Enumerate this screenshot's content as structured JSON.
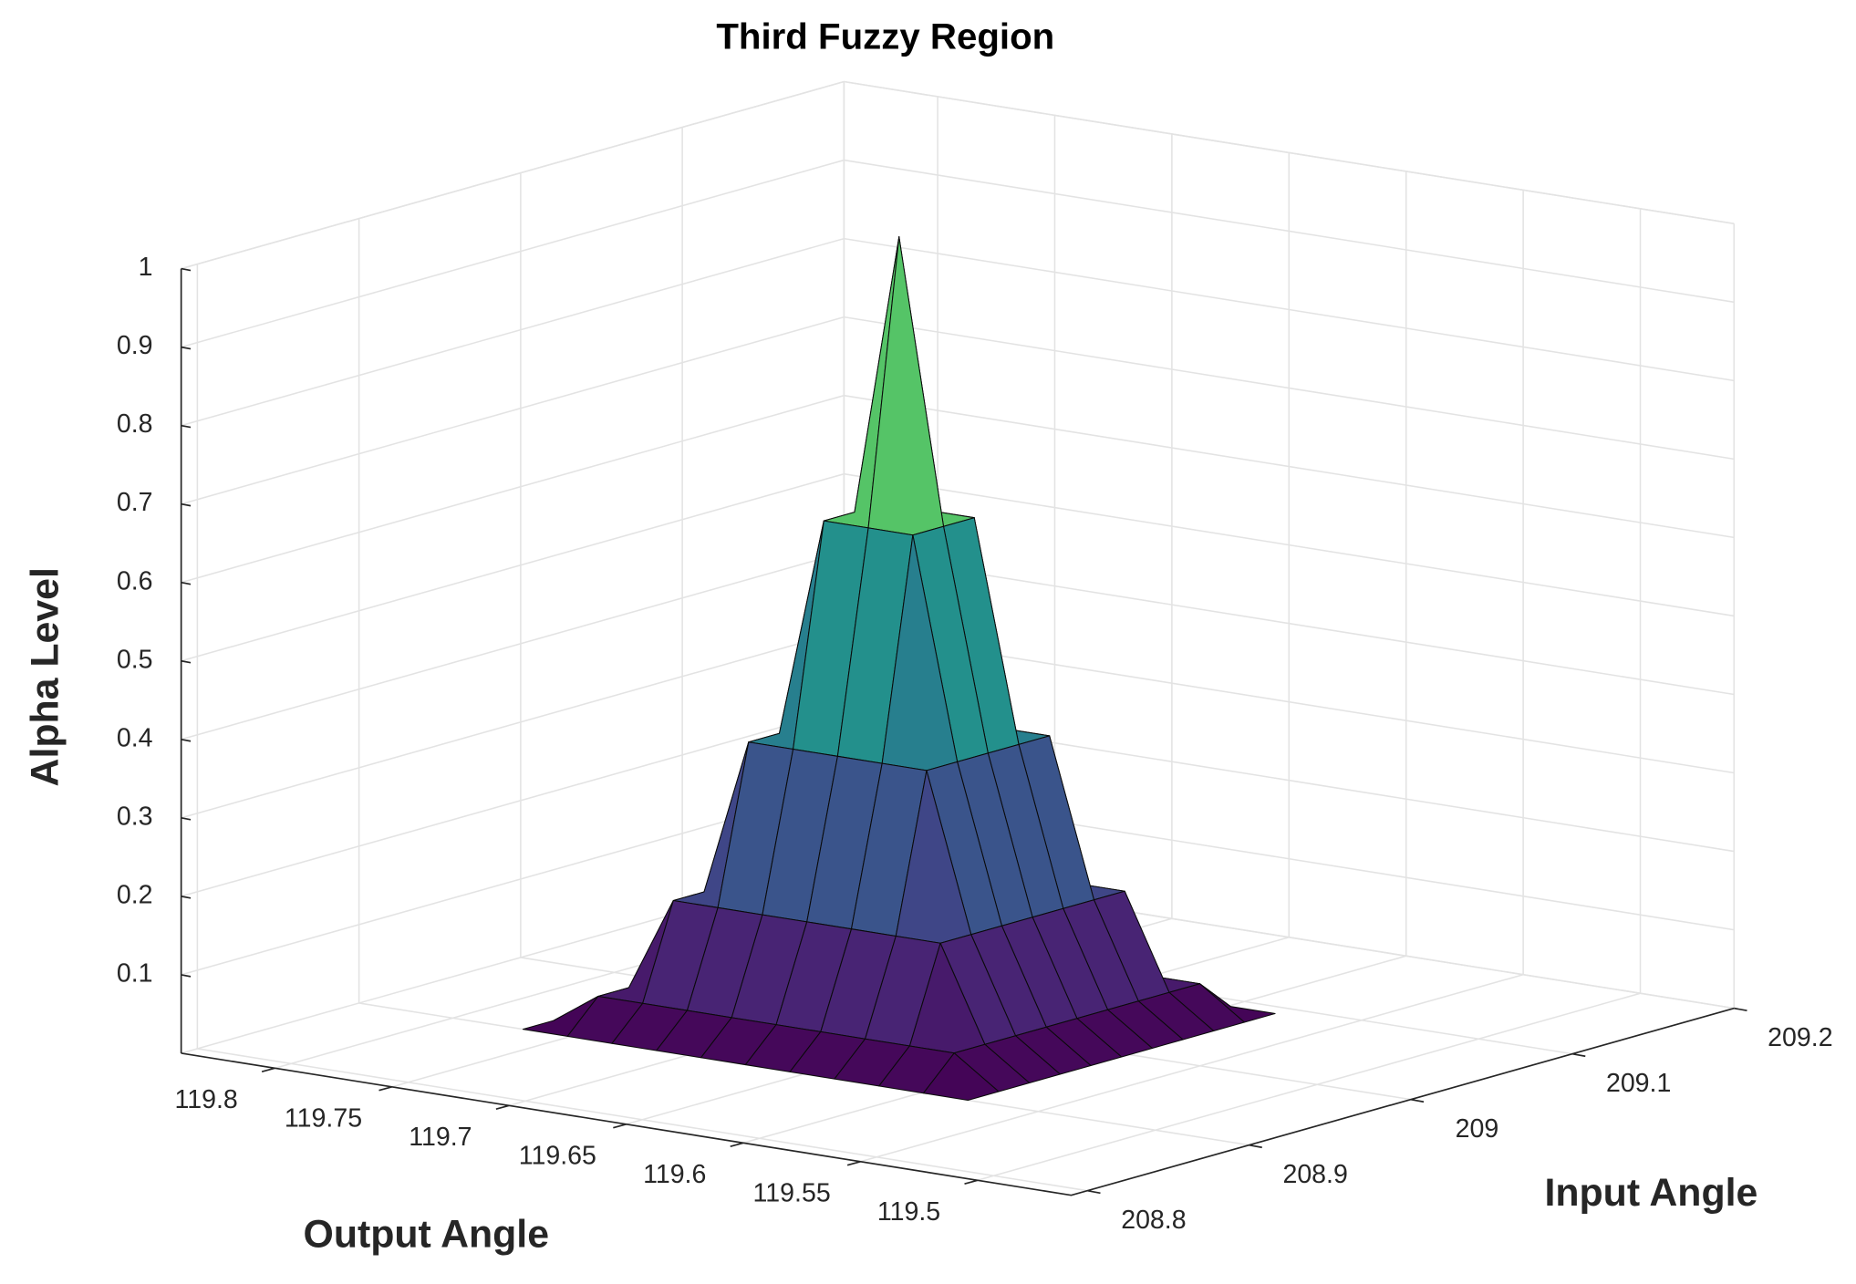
{
  "chart_data": {
    "type": "surface",
    "title": "Third Fuzzy Region",
    "x_label": "Output Angle",
    "y_label": "Input Angle",
    "z_label": "Alpha Level",
    "colormap": "viridis",
    "grid": true,
    "xlim": [
      119.46,
      119.84
    ],
    "ylim": [
      208.79,
      209.2
    ],
    "zlim": [
      0,
      1
    ],
    "xticks": [
      119.5,
      119.55,
      119.6,
      119.65,
      119.7,
      119.75,
      119.8
    ],
    "yticks": [
      208.8,
      208.9,
      209,
      209.1,
      209.2
    ],
    "zticks": [
      0.1,
      0.2,
      0.3,
      0.4,
      0.5,
      0.6,
      0.7,
      0.8,
      0.9,
      1
    ],
    "x": [
      119.58,
      119.599,
      119.618,
      119.637,
      119.656,
      119.675,
      119.694,
      119.713,
      119.732,
      119.751,
      119.77
    ],
    "y": [
      208.9,
      208.919,
      208.938,
      208.957,
      208.976,
      208.995,
      209.014,
      209.033,
      209.052,
      209.071,
      209.09
    ],
    "z": [
      [
        0,
        0,
        0,
        0,
        0,
        0,
        0,
        0,
        0,
        0,
        0
      ],
      [
        0,
        0.04,
        0.04,
        0.04,
        0.04,
        0.04,
        0.04,
        0.04,
        0.04,
        0.04,
        0
      ],
      [
        0,
        0.04,
        0.16,
        0.16,
        0.16,
        0.16,
        0.16,
        0.16,
        0.16,
        0.04,
        0
      ],
      [
        0,
        0.04,
        0.16,
        0.36,
        0.36,
        0.36,
        0.36,
        0.36,
        0.16,
        0.04,
        0
      ],
      [
        0,
        0.04,
        0.16,
        0.36,
        0.64,
        0.64,
        0.64,
        0.36,
        0.16,
        0.04,
        0
      ],
      [
        0,
        0.04,
        0.16,
        0.36,
        0.64,
        1,
        0.64,
        0.36,
        0.16,
        0.04,
        0
      ],
      [
        0,
        0.04,
        0.16,
        0.36,
        0.64,
        0.64,
        0.64,
        0.36,
        0.16,
        0.04,
        0
      ],
      [
        0,
        0.04,
        0.16,
        0.36,
        0.36,
        0.36,
        0.36,
        0.36,
        0.16,
        0.04,
        0
      ],
      [
        0,
        0.04,
        0.16,
        0.16,
        0.16,
        0.16,
        0.16,
        0.16,
        0.16,
        0.04,
        0
      ],
      [
        0,
        0.04,
        0.04,
        0.04,
        0.04,
        0.04,
        0.04,
        0.04,
        0.04,
        0.04,
        0
      ],
      [
        0,
        0,
        0,
        0,
        0,
        0,
        0,
        0,
        0,
        0,
        0
      ]
    ]
  }
}
